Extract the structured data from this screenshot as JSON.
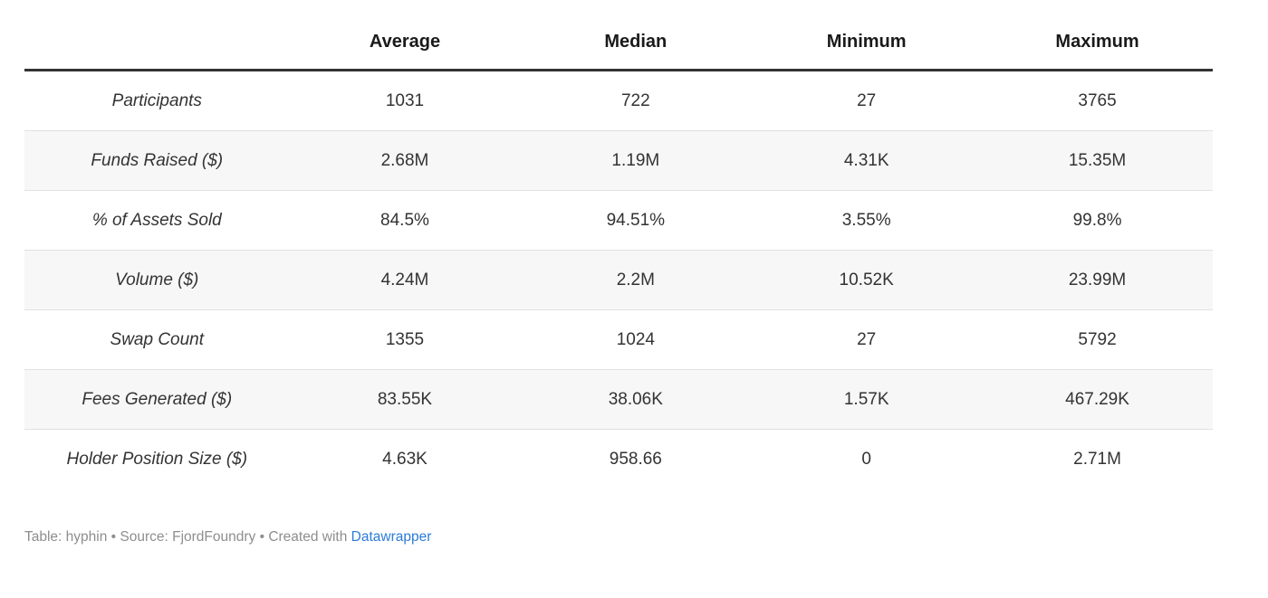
{
  "table": {
    "columns": [
      "",
      "Average",
      "Median",
      "Minimum",
      "Maximum"
    ],
    "rows": [
      {
        "label": "Participants",
        "values": [
          "1031",
          "722",
          "27",
          "3765"
        ]
      },
      {
        "label": "Funds Raised ($)",
        "values": [
          "2.68M",
          "1.19M",
          "4.31K",
          "15.35M"
        ]
      },
      {
        "label": "% of Assets Sold",
        "values": [
          "84.5%",
          "94.51%",
          "3.55%",
          "99.8%"
        ]
      },
      {
        "label": "Volume ($)",
        "values": [
          "4.24M",
          "2.2M",
          "10.52K",
          "23.99M"
        ]
      },
      {
        "label": "Swap Count",
        "values": [
          "1355",
          "1024",
          "27",
          "5792"
        ]
      },
      {
        "label": "Fees Generated ($)",
        "values": [
          "83.55K",
          "38.06K",
          "1.57K",
          "467.29K"
        ]
      },
      {
        "label": "Holder Position Size ($)",
        "values": [
          "4.63K",
          "958.66",
          "0",
          "2.71M"
        ]
      }
    ]
  },
  "footer": {
    "prefix": "Table: hyphin • Source: FjordFoundry • Created with ",
    "link_label": "Datawrapper"
  },
  "colors": {
    "header_rule": "#333333",
    "row_divider": "#e1e1e1",
    "alt_row_background": "#f7f7f7",
    "body_text": "#333333",
    "footer_text": "#8e8e8e",
    "link_blue": "#2b7cd9"
  },
  "chart_data": {
    "type": "table",
    "title": "",
    "columns": [
      "Average",
      "Median",
      "Minimum",
      "Maximum"
    ],
    "row_labels": [
      "Participants",
      "Funds Raised ($)",
      "% of Assets Sold",
      "Volume ($)",
      "Swap Count",
      "Fees Generated ($)",
      "Holder Position Size ($)"
    ],
    "values": [
      [
        "1031",
        "722",
        "27",
        "3765"
      ],
      [
        "2.68M",
        "1.19M",
        "4.31K",
        "15.35M"
      ],
      [
        "84.5%",
        "94.51%",
        "3.55%",
        "99.8%"
      ],
      [
        "4.24M",
        "2.2M",
        "10.52K",
        "23.99M"
      ],
      [
        "1355",
        "1024",
        "27",
        "5792"
      ],
      [
        "83.55K",
        "38.06K",
        "1.57K",
        "467.29K"
      ],
      [
        "4.63K",
        "958.66",
        "0",
        "2.71M"
      ]
    ],
    "attribution": "Table: hyphin • Source: FjordFoundry • Created with Datawrapper"
  }
}
